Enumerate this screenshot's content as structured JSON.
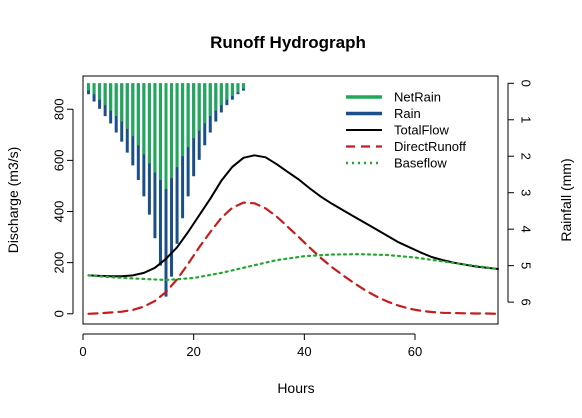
{
  "chart_data": {
    "type": "line",
    "title": "Runoff Hydrograph",
    "xlabel": "Hours",
    "ylabel": "Discharge (m3/s)",
    "y2label": "Rainfall (mm)",
    "xlim": [
      0,
      75
    ],
    "ylim": [
      -40,
      930
    ],
    "y2lim": [
      -0.2,
      6.6
    ],
    "x_ticks": [
      0,
      20,
      40,
      60
    ],
    "y_ticks": [
      0,
      200,
      400,
      600,
      800
    ],
    "y2_ticks": [
      0,
      1,
      2,
      3,
      4,
      5,
      6
    ],
    "grid": false,
    "legend_position": "top-right",
    "series": [
      {
        "name": "TotalFlow",
        "color": "#000000",
        "style": "solid",
        "x": [
          1,
          3,
          5,
          7,
          9,
          11,
          13,
          15,
          17,
          19,
          21,
          23,
          25,
          27,
          29,
          31,
          33,
          35,
          37,
          39,
          41,
          43,
          45,
          47,
          49,
          51,
          53,
          55,
          57,
          59,
          61,
          63,
          65,
          67,
          69,
          71,
          73,
          75
        ],
        "y": [
          150,
          148,
          147,
          147,
          150,
          160,
          180,
          215,
          260,
          320,
          385,
          450,
          520,
          575,
          610,
          620,
          612,
          585,
          555,
          525,
          490,
          458,
          430,
          405,
          380,
          355,
          330,
          305,
          280,
          260,
          240,
          222,
          210,
          200,
          192,
          185,
          180,
          175
        ]
      },
      {
        "name": "DirectRunoff",
        "color": "#c41e1e",
        "style": "dashed",
        "x": [
          1,
          3,
          5,
          7,
          9,
          11,
          13,
          15,
          17,
          19,
          21,
          23,
          25,
          27,
          29,
          31,
          33,
          35,
          37,
          39,
          41,
          43,
          45,
          47,
          49,
          51,
          53,
          55,
          57,
          59,
          61,
          63,
          65,
          67,
          69,
          71,
          73,
          75
        ],
        "y": [
          0,
          2,
          5,
          8,
          15,
          28,
          50,
          85,
          135,
          195,
          260,
          320,
          375,
          415,
          435,
          432,
          412,
          380,
          340,
          300,
          258,
          218,
          182,
          150,
          120,
          92,
          68,
          48,
          32,
          20,
          12,
          7,
          4,
          3,
          2,
          1,
          1,
          0
        ]
      },
      {
        "name": "Baseflow",
        "color": "#22a82e",
        "style": "dotted",
        "x": [
          1,
          5,
          10,
          15,
          20,
          25,
          30,
          35,
          40,
          45,
          50,
          55,
          60,
          65,
          70,
          75
        ],
        "y": [
          150,
          143,
          137,
          132,
          140,
          160,
          185,
          210,
          225,
          232,
          233,
          230,
          220,
          205,
          190,
          175
        ]
      }
    ],
    "rain_bars": [
      {
        "name": "Rain",
        "color": "#1a4f8a",
        "x": [
          1,
          2,
          3,
          4,
          5,
          6,
          7,
          8,
          9,
          10,
          11,
          12,
          13,
          14,
          15,
          16,
          17,
          18,
          19,
          20,
          21,
          22,
          23,
          24,
          25,
          26,
          27,
          28,
          29
        ],
        "values": [
          0.3,
          0.5,
          0.7,
          0.9,
          1.1,
          1.35,
          1.6,
          1.9,
          2.25,
          2.65,
          3.1,
          3.6,
          4.25,
          5.0,
          5.85,
          5.3,
          4.4,
          3.7,
          3.1,
          2.55,
          2.1,
          1.7,
          1.35,
          1.05,
          0.8,
          0.6,
          0.45,
          0.3,
          0.2
        ]
      },
      {
        "name": "NetRain",
        "color": "#22a85a",
        "x": [
          1,
          2,
          3,
          4,
          5,
          6,
          7,
          8,
          9,
          10,
          11,
          12,
          13,
          14,
          15,
          16,
          17,
          18,
          19,
          20,
          21,
          22,
          23,
          24,
          25,
          26,
          27,
          28,
          29
        ],
        "values": [
          0.2,
          0.3,
          0.45,
          0.6,
          0.75,
          0.9,
          1.05,
          1.25,
          1.45,
          1.7,
          1.95,
          2.2,
          2.45,
          2.65,
          2.9,
          2.6,
          2.3,
          2.0,
          1.75,
          1.5,
          1.3,
          1.1,
          0.9,
          0.75,
          0.6,
          0.45,
          0.35,
          0.25,
          0.15
        ]
      }
    ],
    "legend": [
      {
        "name": "NetRain",
        "color": "#22a85a",
        "style": "thick"
      },
      {
        "name": "Rain",
        "color": "#1a4f8a",
        "style": "thick"
      },
      {
        "name": "TotalFlow",
        "color": "#000000",
        "style": "solid"
      },
      {
        "name": "DirectRunoff",
        "color": "#c41e1e",
        "style": "dashed"
      },
      {
        "name": "Baseflow",
        "color": "#22a82e",
        "style": "dotted"
      }
    ]
  }
}
